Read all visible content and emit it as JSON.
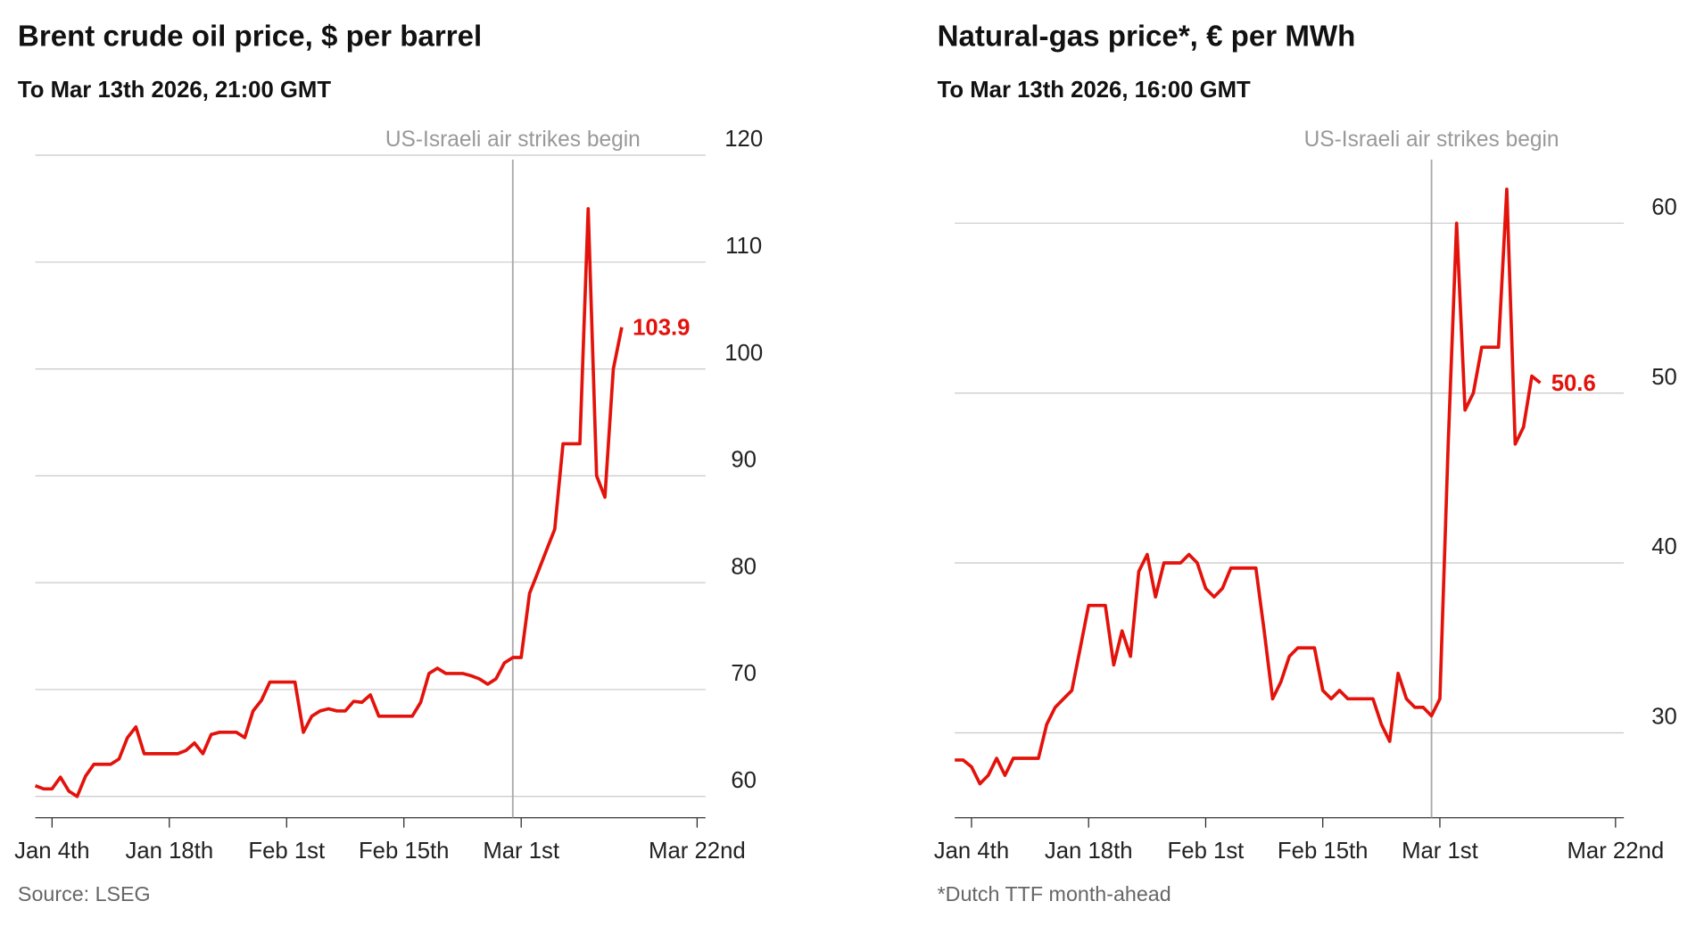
{
  "chart_data": [
    {
      "type": "line",
      "title": "Brent crude oil price, $ per barrel",
      "subtitle": "To Mar 13th 2026, 21:00 GMT",
      "source": "Source: LSEG",
      "annotation": {
        "text": "US-Israeli air strikes begin",
        "x": "2026-02-28"
      },
      "x": [
        "2026-01-02",
        "2026-01-03",
        "2026-01-04",
        "2026-01-05",
        "2026-01-06",
        "2026-01-07",
        "2026-01-08",
        "2026-01-09",
        "2026-01-10",
        "2026-01-11",
        "2026-01-12",
        "2026-01-13",
        "2026-01-14",
        "2026-01-15",
        "2026-01-16",
        "2026-01-17",
        "2026-01-18",
        "2026-01-19",
        "2026-01-20",
        "2026-01-21",
        "2026-01-22",
        "2026-01-23",
        "2026-01-24",
        "2026-01-25",
        "2026-01-26",
        "2026-01-27",
        "2026-01-28",
        "2026-01-29",
        "2026-01-30",
        "2026-01-31",
        "2026-02-01",
        "2026-02-02",
        "2026-02-03",
        "2026-02-04",
        "2026-02-05",
        "2026-02-06",
        "2026-02-07",
        "2026-02-08",
        "2026-02-09",
        "2026-02-10",
        "2026-02-11",
        "2026-02-12",
        "2026-02-13",
        "2026-02-14",
        "2026-02-15",
        "2026-02-16",
        "2026-02-17",
        "2026-02-18",
        "2026-02-19",
        "2026-02-20",
        "2026-02-21",
        "2026-02-22",
        "2026-02-23",
        "2026-02-24",
        "2026-02-25",
        "2026-02-26",
        "2026-02-27",
        "2026-02-28",
        "2026-03-01",
        "2026-03-02",
        "2026-03-03",
        "2026-03-04",
        "2026-03-05",
        "2026-03-06",
        "2026-03-07",
        "2026-03-08",
        "2026-03-09",
        "2026-03-10",
        "2026-03-11",
        "2026-03-12",
        "2026-03-13"
      ],
      "series": [
        {
          "name": "Brent",
          "color": "#e3120b",
          "values": [
            61,
            60.7,
            60.7,
            61.8,
            60.5,
            60,
            61.9,
            63,
            63,
            63,
            63.5,
            65.5,
            66.5,
            64,
            64,
            64,
            64,
            64,
            64.3,
            65,
            64,
            65.8,
            66,
            66,
            66,
            65.5,
            68,
            69,
            70.7,
            70.7,
            70.7,
            70.7,
            66,
            67.5,
            68,
            68.2,
            68,
            68,
            68.9,
            68.8,
            69.5,
            67.5,
            67.5,
            67.5,
            67.5,
            67.5,
            68.8,
            71.5,
            72,
            71.5,
            71.5,
            71.5,
            71.3,
            71,
            70.5,
            71,
            72.5,
            73,
            73,
            79,
            81,
            83,
            85,
            93,
            93,
            93,
            115,
            90,
            88,
            100,
            103.9
          ]
        }
      ],
      "xlim": [
        "2026-01-02",
        "2026-03-23"
      ],
      "xticks": [
        {
          "value": "2026-01-04",
          "label": "Jan 4th"
        },
        {
          "value": "2026-01-18",
          "label": "Jan 18th"
        },
        {
          "value": "2026-02-01",
          "label": "Feb 1st"
        },
        {
          "value": "2026-02-15",
          "label": "Feb 15th"
        },
        {
          "value": "2026-03-01",
          "label": "Mar 1st"
        },
        {
          "value": "2026-03-22",
          "label": "Mar 22nd"
        }
      ],
      "ylim": [
        58,
        120
      ],
      "yticks": [
        60,
        70,
        80,
        90,
        100,
        110,
        120
      ],
      "grid": true
    },
    {
      "type": "line",
      "title": "Natural-gas price*, € per MWh",
      "subtitle": "To Mar 13th 2026, 16:00 GMT",
      "source": "*Dutch TTF month-ahead",
      "annotation": {
        "text": "US-Israeli air strikes begin",
        "x": "2026-02-28"
      },
      "x": [
        "2026-01-02",
        "2026-01-03",
        "2026-01-04",
        "2026-01-05",
        "2026-01-06",
        "2026-01-07",
        "2026-01-08",
        "2026-01-09",
        "2026-01-10",
        "2026-01-11",
        "2026-01-12",
        "2026-01-13",
        "2026-01-14",
        "2026-01-15",
        "2026-01-16",
        "2026-01-17",
        "2026-01-18",
        "2026-01-19",
        "2026-01-20",
        "2026-01-21",
        "2026-01-22",
        "2026-01-23",
        "2026-01-24",
        "2026-01-25",
        "2026-01-26",
        "2026-01-27",
        "2026-01-28",
        "2026-01-29",
        "2026-01-30",
        "2026-01-31",
        "2026-02-01",
        "2026-02-02",
        "2026-02-03",
        "2026-02-04",
        "2026-02-05",
        "2026-02-06",
        "2026-02-07",
        "2026-02-08",
        "2026-02-09",
        "2026-02-10",
        "2026-02-11",
        "2026-02-12",
        "2026-02-13",
        "2026-02-14",
        "2026-02-15",
        "2026-02-16",
        "2026-02-17",
        "2026-02-18",
        "2026-02-19",
        "2026-02-20",
        "2026-02-21",
        "2026-02-22",
        "2026-02-23",
        "2026-02-24",
        "2026-02-25",
        "2026-02-26",
        "2026-02-27",
        "2026-02-28",
        "2026-03-01",
        "2026-03-02",
        "2026-03-03",
        "2026-03-04",
        "2026-03-05",
        "2026-03-06",
        "2026-03-07",
        "2026-03-08",
        "2026-03-09",
        "2026-03-10",
        "2026-03-11",
        "2026-03-12",
        "2026-03-13"
      ],
      "series": [
        {
          "name": "Dutch TTF",
          "color": "#e3120b",
          "values": [
            28.4,
            28.4,
            28,
            27,
            27.5,
            28.5,
            27.5,
            28.5,
            28.5,
            28.5,
            28.5,
            30.5,
            31.5,
            32,
            32.5,
            35,
            37.5,
            37.5,
            37.5,
            34,
            36,
            34.5,
            39.5,
            40.5,
            38,
            40,
            40,
            40,
            40.5,
            40,
            38.5,
            38,
            38.5,
            39.7,
            39.7,
            39.7,
            39.7,
            36,
            32,
            33,
            34.5,
            35,
            35,
            35,
            32.5,
            32,
            32.5,
            32,
            32,
            32,
            32,
            30.5,
            29.5,
            33.5,
            32,
            31.5,
            31.5,
            31,
            32,
            47,
            60,
            49,
            50,
            52.7,
            52.7,
            52.7,
            62,
            47,
            48,
            51,
            50.6
          ]
        }
      ],
      "xlim": [
        "2026-01-02",
        "2026-03-23"
      ],
      "xticks": [
        {
          "value": "2026-01-04",
          "label": "Jan 4th"
        },
        {
          "value": "2026-01-18",
          "label": "Jan 18th"
        },
        {
          "value": "2026-02-01",
          "label": "Feb 1st"
        },
        {
          "value": "2026-02-15",
          "label": "Feb 15th"
        },
        {
          "value": "2026-03-01",
          "label": "Mar 1st"
        },
        {
          "value": "2026-03-22",
          "label": "Mar 22nd"
        }
      ],
      "ylim": [
        25,
        64
      ],
      "yticks": [
        30,
        40,
        50,
        60
      ],
      "grid": true
    }
  ]
}
